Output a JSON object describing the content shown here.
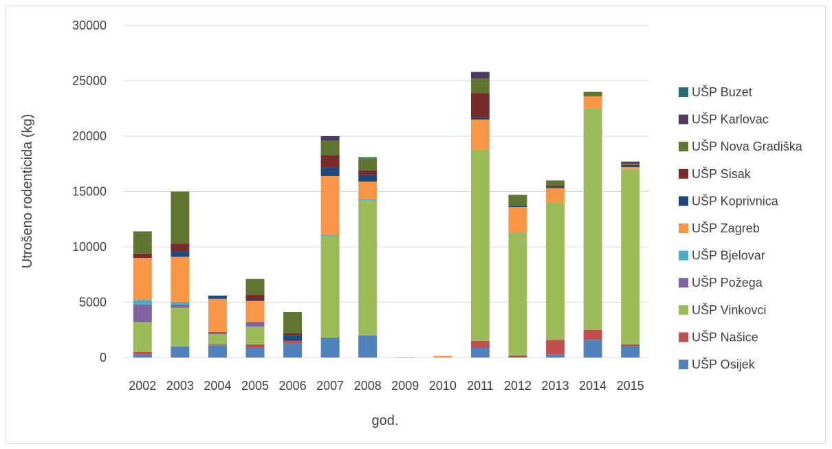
{
  "chart_data": {
    "type": "bar",
    "stacked": true,
    "title": "",
    "xlabel": "god.",
    "ylabel": "Utrošeno rodenticida (kg)",
    "ylim": [
      0,
      30000
    ],
    "yticks": [
      0,
      5000,
      10000,
      15000,
      20000,
      25000,
      30000
    ],
    "grid": true,
    "legend_position": "right",
    "categories": [
      "2002",
      "2003",
      "2004",
      "2005",
      "2006",
      "2007",
      "2008",
      "2009",
      "2010",
      "2011",
      "2012",
      "2013",
      "2014",
      "2015"
    ],
    "series": [
      {
        "name": "UŠP Osijek",
        "color": "#4f81bd",
        "values": [
          300,
          1000,
          1100,
          900,
          1300,
          1800,
          2000,
          0,
          0,
          900,
          0,
          300,
          1600,
          1000
        ]
      },
      {
        "name": "UŠP  Našice",
        "color": "#c0504d",
        "values": [
          200,
          0,
          100,
          300,
          200,
          0,
          0,
          0,
          0,
          600,
          200,
          1300,
          900,
          200
        ]
      },
      {
        "name": "UŠP  Vinkovci",
        "color": "#9bbb59",
        "values": [
          2700,
          3500,
          900,
          1600,
          0,
          9200,
          12200,
          0,
          0,
          17300,
          11100,
          12400,
          20000,
          15800
        ]
      },
      {
        "name": "UŠP  Požega",
        "color": "#8064a2",
        "values": [
          1600,
          300,
          200,
          400,
          0,
          0,
          0,
          0,
          0,
          0,
          0,
          0,
          0,
          0
        ]
      },
      {
        "name": "UŠP Bjelovar",
        "color": "#4bacc6",
        "values": [
          400,
          200,
          0,
          0,
          0,
          100,
          100,
          0,
          0,
          0,
          0,
          0,
          0,
          0
        ]
      },
      {
        "name": "UŠP Zagreb",
        "color": "#f79646",
        "values": [
          3800,
          4100,
          3000,
          1900,
          0,
          5300,
          1600,
          50,
          150,
          2700,
          2300,
          1300,
          1100,
          200
        ]
      },
      {
        "name": "UŠP Koprivnica",
        "color": "#1f497d",
        "values": [
          0,
          500,
          300,
          100,
          500,
          800,
          600,
          0,
          0,
          200,
          100,
          100,
          0,
          100
        ]
      },
      {
        "name": "UŠP Sisak",
        "color": "#772c2a",
        "values": [
          400,
          700,
          0,
          500,
          200,
          1100,
          400,
          0,
          0,
          2200,
          0,
          100,
          0,
          100
        ]
      },
      {
        "name": "UŠP Nova Gradiška",
        "color": "#5f7530",
        "values": [
          2000,
          4700,
          0,
          1400,
          1900,
          1300,
          1100,
          0,
          0,
          1300,
          1000,
          500,
          400,
          100
        ]
      },
      {
        "name": "UŠP Karlovac",
        "color": "#4d3b62",
        "values": [
          0,
          0,
          0,
          0,
          0,
          400,
          0,
          0,
          0,
          600,
          0,
          0,
          0,
          200
        ]
      },
      {
        "name": "UŠP Buzet",
        "color": "#276a7c",
        "values": [
          0,
          0,
          0,
          0,
          0,
          0,
          100,
          0,
          0,
          0,
          0,
          0,
          0,
          0
        ]
      }
    ]
  }
}
